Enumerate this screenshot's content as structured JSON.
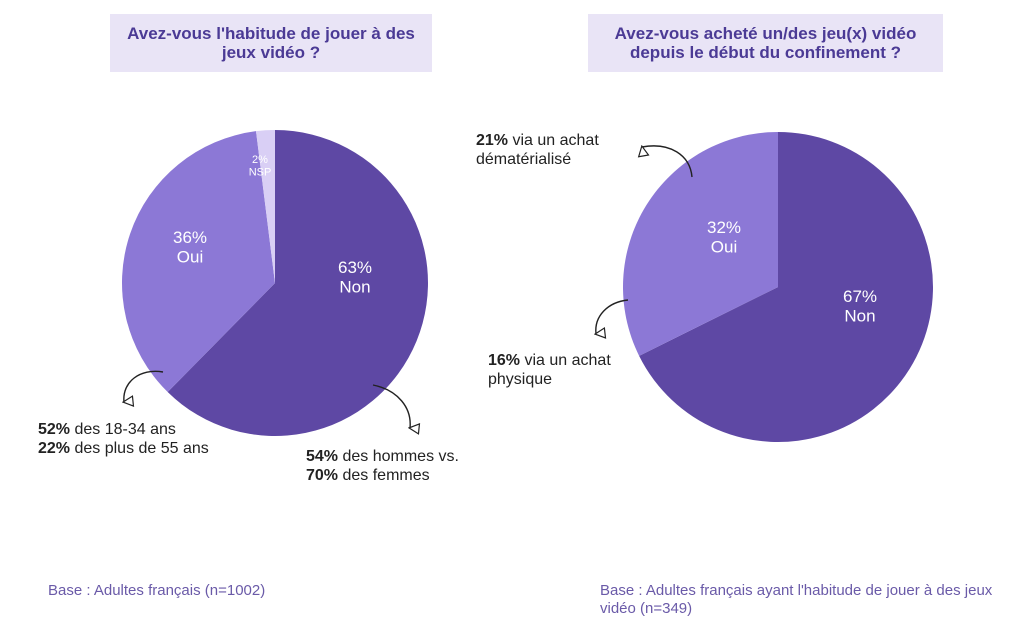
{
  "colors": {
    "non": "#5e48a4",
    "oui": "#8c78d6",
    "nsp": "#d9cff5",
    "title_bg": "#e9e4f6",
    "base_text": "#6a5aa8"
  },
  "chart_data": [
    {
      "type": "pie",
      "title": "Avez-vous l'habitude de jouer à des jeux vidéo ?",
      "slices": [
        {
          "name": "Non",
          "value": 63,
          "pct_label": "63%",
          "color": "#5e48a4"
        },
        {
          "name": "Oui",
          "value": 36,
          "pct_label": "36%",
          "color": "#8c78d6"
        },
        {
          "name": "NSP",
          "value": 2,
          "pct_label": "2%",
          "color": "#d9cff5"
        }
      ]
    },
    {
      "type": "pie",
      "title": "Avez-vous acheté un/des jeu(x) vidéo depuis le début du confinement ?",
      "slices": [
        {
          "name": "Non",
          "value": 67,
          "pct_label": "67%",
          "color": "#5e48a4"
        },
        {
          "name": "Oui",
          "value": 32,
          "pct_label": "32%",
          "color": "#8c78d6"
        }
      ]
    }
  ],
  "annotations": {
    "left_oui": {
      "line1_bold": "52%",
      "line1_rest": " des 18-34 ans",
      "line2_bold": "22%",
      "line2_rest": " des plus de 55 ans"
    },
    "left_non": {
      "line1_bold": "54%",
      "line1_rest": " des hommes vs.",
      "line2_bold": "70%",
      "line2_rest": " des femmes"
    },
    "right_dem": {
      "line1_bold": "21%",
      "line1_rest": " via un achat",
      "line2": "dématérialisé"
    },
    "right_phys": {
      "line1_bold": "16%",
      "line1_rest": " via un achat",
      "line2": "physique"
    }
  },
  "bases": {
    "left": "Base : Adultes français (n=1002)",
    "right": "Base : Adultes français ayant l'habitude de jouer à des jeux vidéo (n=349)"
  }
}
